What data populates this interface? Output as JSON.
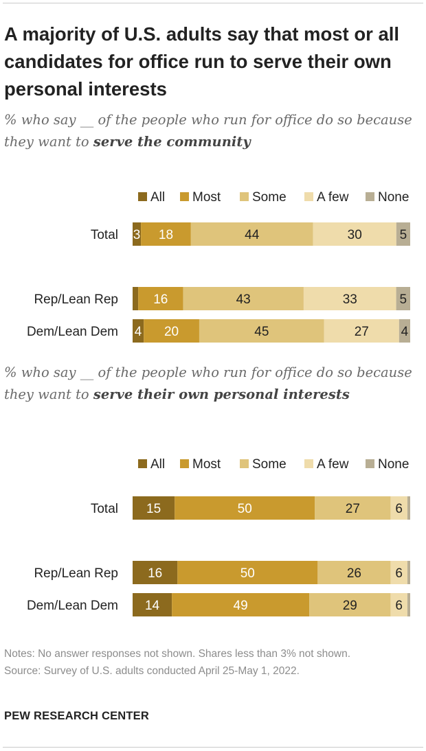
{
  "title": "A majority of U.S. adults say that most or all candidates for office run to serve their own personal interests",
  "charts": [
    {
      "subtitle_prefix": "% who say __ of the people who run for office do so because they want to",
      "subtitle_emphasis": "serve the community"
    },
    {
      "subtitle_prefix": "% who say __ of the people who run for office do so because they want to",
      "subtitle_emphasis": "serve their own personal interests"
    }
  ],
  "colors": {
    "All": "#8c6a1e",
    "Most": "#c99a2e",
    "Some": "#dfc47b",
    "A few": "#efdcab",
    "None": "#b8ae94"
  },
  "notes": "Notes: No answer responses not shown. Shares less than 3% not shown.",
  "source": "Source: Survey of U.S. adults conducted April 25-May 1, 2022.",
  "logo": "PEW RESEARCH CENTER",
  "chart_data": [
    {
      "type": "bar",
      "stacked": true,
      "orientation": "horizontal",
      "legend": [
        "All",
        "Most",
        "Some",
        "A few",
        "None"
      ],
      "legend_position": "top",
      "categories": [
        "Total",
        "Rep/Lean Rep",
        "Dem/Lean Dem"
      ],
      "series": [
        {
          "name": "All",
          "values": [
            3,
            2,
            4
          ],
          "labels": [
            "3",
            "",
            "4"
          ]
        },
        {
          "name": "Most",
          "values": [
            18,
            16,
            20
          ],
          "labels": [
            "18",
            "16",
            "20"
          ]
        },
        {
          "name": "Some",
          "values": [
            44,
            43,
            45
          ],
          "labels": [
            "44",
            "43",
            "45"
          ]
        },
        {
          "name": "A few",
          "values": [
            30,
            33,
            27
          ],
          "labels": [
            "30",
            "33",
            "27"
          ]
        },
        {
          "name": "None",
          "values": [
            5,
            5,
            4
          ],
          "labels": [
            "5",
            "5",
            "4"
          ]
        }
      ]
    },
    {
      "type": "bar",
      "stacked": true,
      "orientation": "horizontal",
      "legend": [
        "All",
        "Most",
        "Some",
        "A few",
        "None"
      ],
      "legend_position": "top",
      "categories": [
        "Total",
        "Rep/Lean Rep",
        "Dem/Lean Dem"
      ],
      "series": [
        {
          "name": "All",
          "values": [
            15,
            16,
            14
          ],
          "labels": [
            "15",
            "16",
            "14"
          ]
        },
        {
          "name": "Most",
          "values": [
            50,
            50,
            49
          ],
          "labels": [
            "50",
            "50",
            "49"
          ]
        },
        {
          "name": "Some",
          "values": [
            27,
            26,
            29
          ],
          "labels": [
            "27",
            "26",
            "29"
          ]
        },
        {
          "name": "A few",
          "values": [
            6,
            6,
            6
          ],
          "labels": [
            "6",
            "6",
            "6"
          ]
        },
        {
          "name": "None",
          "values": [
            1,
            1,
            1
          ],
          "labels": [
            "",
            "",
            ""
          ]
        }
      ]
    }
  ]
}
